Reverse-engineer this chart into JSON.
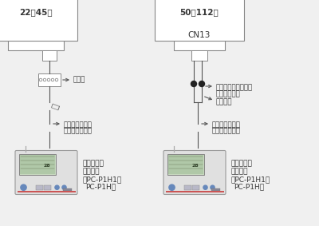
{
  "bg_color": "#f0f0f0",
  "left_title": "22～45型",
  "right_title": "50～112型",
  "cn13_label": "CN13",
  "label_terminal": "端子台",
  "label_connector_1": "コネクタ付きコード",
  "label_connector_2": "（製品付属）",
  "label_crimp": "圧着接続",
  "label_remote_left_1": "リモコンコード",
  "label_remote_left_2": "（現地準備品）",
  "label_remote_right_1": "リモコンコード",
  "label_remote_right_2": "（現地準備品）",
  "label_amenity_1": "アメニティ",
  "label_amenity_2": "リモコン",
  "label_amenity_3": "（PC-P1H1、",
  "label_amenity_4": "PC-P1H）",
  "line_color": "#555555",
  "text_color": "#333333",
  "font_family": "Noto Sans CJK JP",
  "fs_title": 7.5,
  "fs_label": 6.2,
  "fs_amenity": 6.5
}
